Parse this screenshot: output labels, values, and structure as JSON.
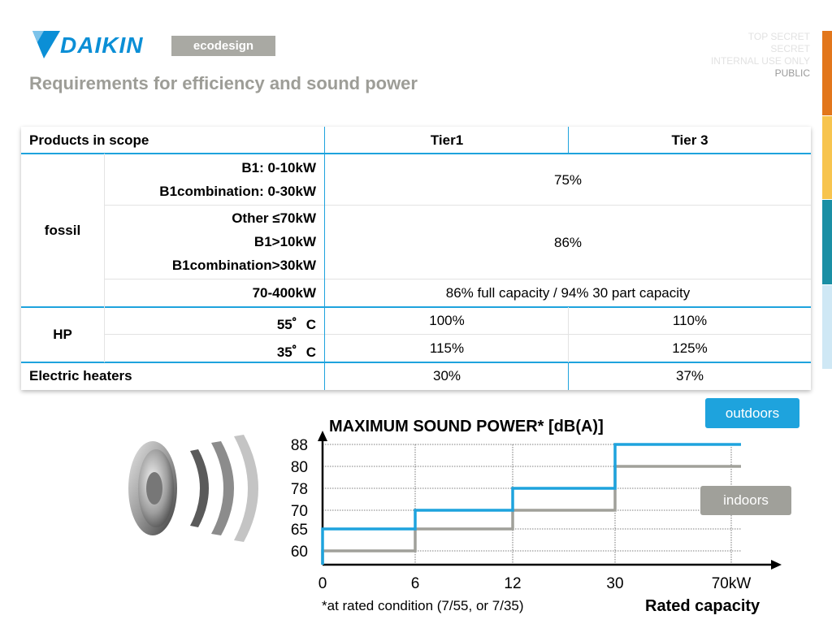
{
  "header": {
    "brand": "DAIKIN",
    "badge": "ecodesign",
    "title": "Requirements for efficiency and sound power",
    "classification": [
      "TOP SECRET",
      "SECRET",
      "INTERNAL USE ONLY",
      "PUBLIC"
    ],
    "active_classification": "PUBLIC"
  },
  "colors": {
    "brand_blue": "#0b8fd6",
    "table_rule": "#1ea3dd",
    "outdoors": "#1ea3dd",
    "indoors": "#a0a09a",
    "side_bar": [
      "#e2761b",
      "#f7c44e",
      "#1a8fa4",
      "#cfe8f5"
    ]
  },
  "table": {
    "headers": [
      "Products in scope",
      "Tier1",
      "Tier 3"
    ],
    "groups": {
      "fossil": "fossil",
      "hp": "HP",
      "electric": "Electric heaters"
    },
    "rows": {
      "r1": {
        "labels": [
          "B1: 0-10kW",
          "B1combination: 0-30kW"
        ],
        "value": "75%"
      },
      "r2": {
        "labels": [
          "Other ≤70kW",
          "B1>10kW",
          "B1combination>30kW"
        ],
        "value": "86%"
      },
      "r3": {
        "label": "70-400kW",
        "value": "86%  full capacity / 94% 30 part capacity"
      },
      "r4": {
        "label": "55゜C",
        "tier1": "100%",
        "tier3": "110%"
      },
      "r5": {
        "label": "35゜C",
        "tier1": "115%",
        "tier3": "125%"
      },
      "r6": {
        "tier1": "30%",
        "tier3": "37%"
      }
    }
  },
  "chart_data": {
    "type": "line",
    "title": "MAXIMUM SOUND POWER* [dB(A)]",
    "xlabel": "Rated capacity",
    "x_ticks": [
      "0",
      "6",
      "12",
      "30",
      "70kW"
    ],
    "y_ticks": [
      60,
      65,
      70,
      78,
      80,
      88
    ],
    "series": [
      {
        "name": "outdoors",
        "steps": [
          {
            "from": "0",
            "to": "6",
            "value": 65
          },
          {
            "from": "6",
            "to": "12",
            "value": 70
          },
          {
            "from": "12",
            "to": "30",
            "value": 78
          },
          {
            "from": "30",
            "to": "70kW",
            "value": 88
          }
        ]
      },
      {
        "name": "indoors",
        "steps": [
          {
            "from": "0",
            "to": "6",
            "value": 60
          },
          {
            "from": "6",
            "to": "12",
            "value": 65
          },
          {
            "from": "12",
            "to": "30",
            "value": 70
          },
          {
            "from": "30",
            "to": "70kW",
            "value": 80
          }
        ]
      }
    ],
    "footnote": "*at rated condition (7/55, or 7/35)"
  }
}
